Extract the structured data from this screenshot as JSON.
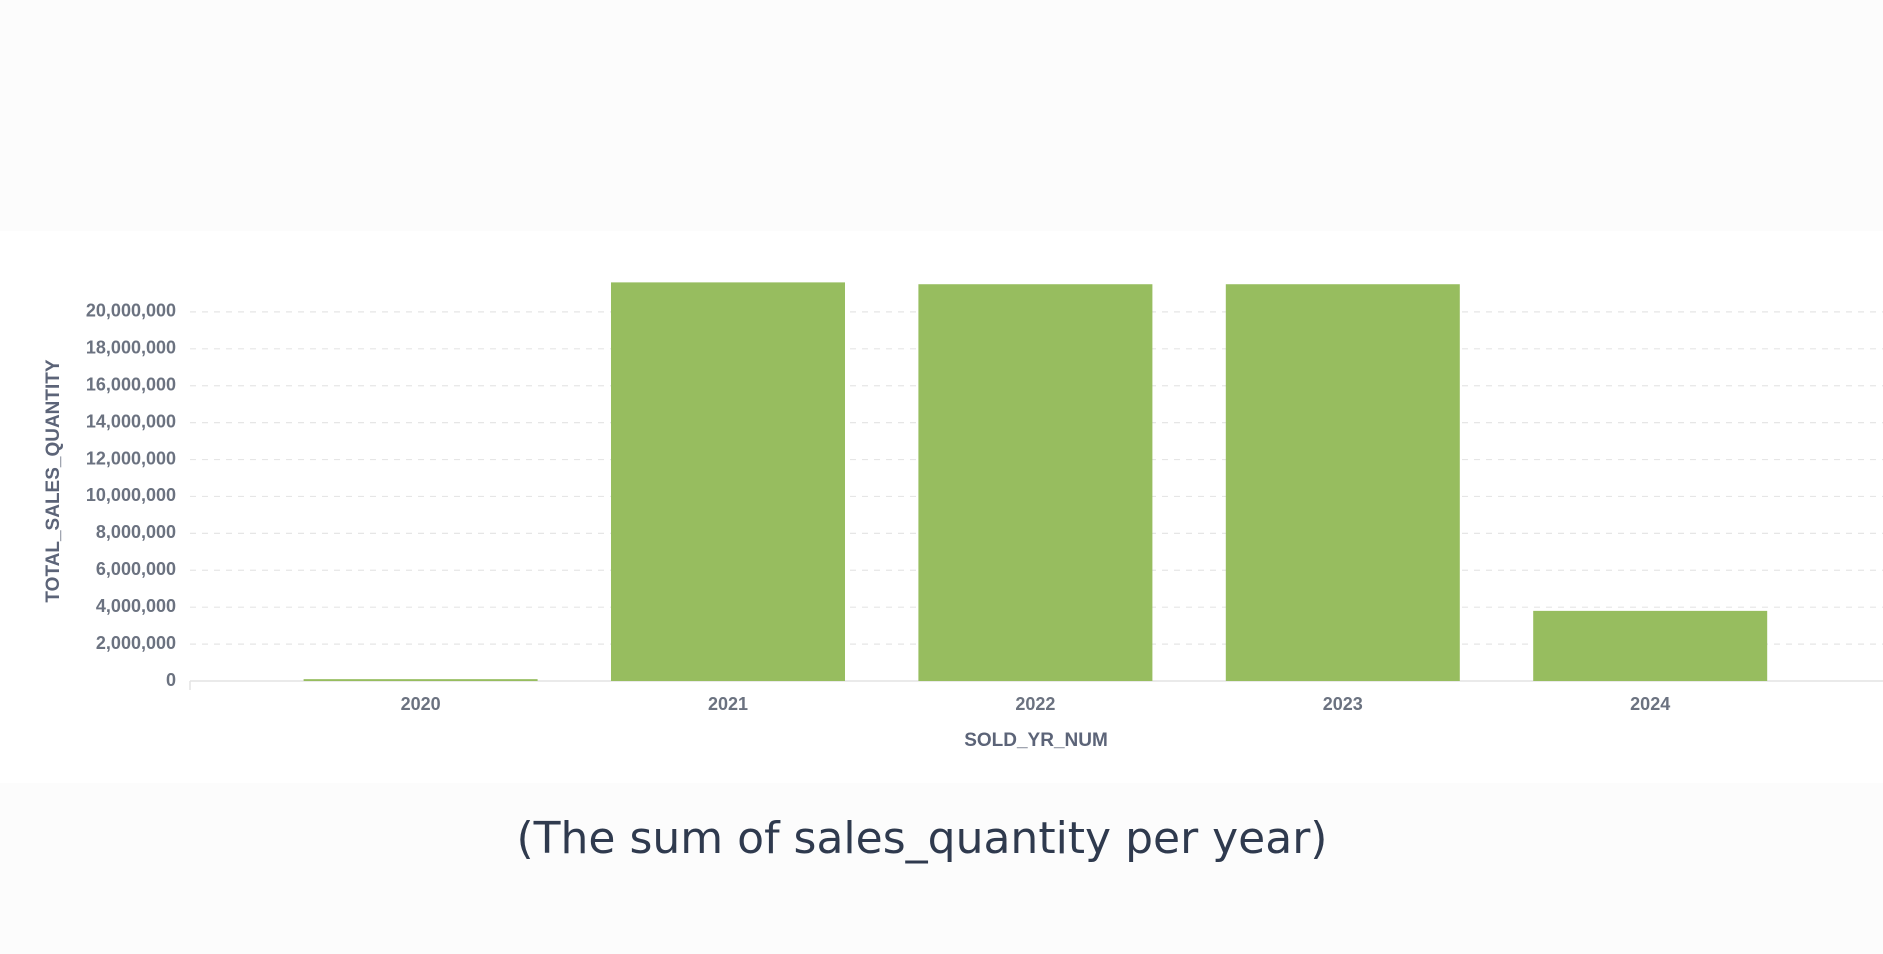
{
  "chart_data": {
    "type": "bar",
    "caption": "(The sum of sales_quantity per year)",
    "x_label": "SOLD_YR_NUM",
    "y_label": "TOTAL_SALES_QUANTITY",
    "categories": [
      "2020",
      "2021",
      "2022",
      "2023",
      "2024"
    ],
    "values": [
      100000,
      21600000,
      21500000,
      21500000,
      3800000
    ],
    "color": "#97bd5f",
    "ylim": [
      0,
      22000000
    ],
    "yticks": [
      0,
      {
        "value": 2000000,
        "label": "2,000,000"
      },
      {
        "value": 4000000,
        "label": "4,000,000"
      },
      {
        "value": 6000000,
        "label": "6,000,000"
      },
      {
        "value": 8000000,
        "label": "8,000,000"
      },
      {
        "value": 10000000,
        "label": "10,000,000"
      },
      {
        "value": 12000000,
        "label": "12,000,000"
      },
      {
        "value": 14000000,
        "label": "14,000,000"
      },
      {
        "value": 16000000,
        "label": "16,000,000"
      },
      {
        "value": 18000000,
        "label": "18,000,000"
      },
      {
        "value": 20000000,
        "label": "20,000,000"
      }
    ],
    "grid": true
  }
}
